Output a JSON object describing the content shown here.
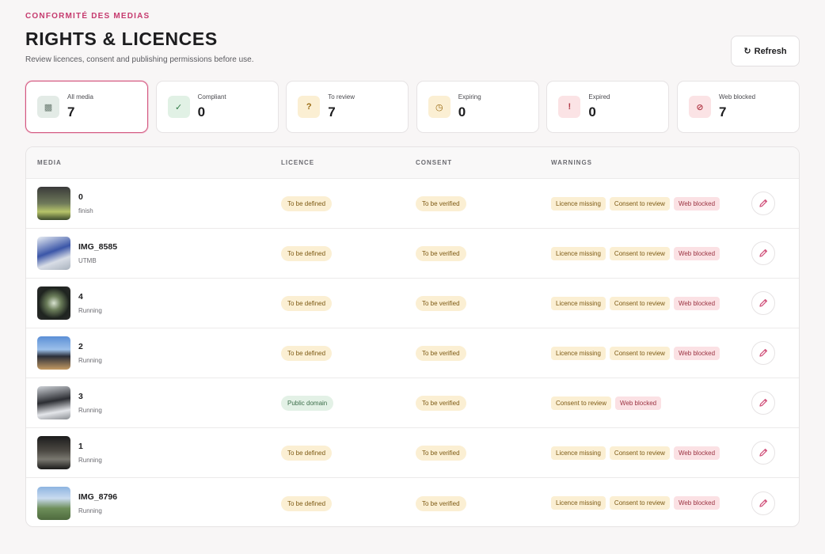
{
  "header": {
    "eyebrow": "CONFORMITÉ DES MEDIAS",
    "title": "RIGHTS & LICENCES",
    "subtitle": "Review licences, consent and publishing permissions before use.",
    "refresh_icon": "↻",
    "refresh": "Refresh"
  },
  "stats": [
    {
      "icon": "▩",
      "label": "All media",
      "value": 7,
      "tone": "slate",
      "active": true
    },
    {
      "icon": "✓",
      "label": "Compliant",
      "value": 0,
      "tone": "green"
    },
    {
      "icon": "?",
      "label": "To review",
      "value": 7,
      "tone": "amber"
    },
    {
      "icon": "◷",
      "label": "Expiring",
      "value": 0,
      "tone": "amber"
    },
    {
      "icon": "!",
      "label": "Expired",
      "value": 0,
      "tone": "red"
    },
    {
      "icon": "⊘",
      "label": "Web blocked",
      "value": 7,
      "tone": "red"
    }
  ],
  "table": {
    "columns": [
      "MEDIA",
      "LICENCE",
      "CONSENT",
      "WARNINGS"
    ],
    "rows": [
      {
        "name": "0",
        "tag": "finish",
        "licence": {
          "text": "To be defined",
          "tone": "amber"
        },
        "consent": {
          "text": "To be verified",
          "tone": "amber"
        },
        "warnings": [
          {
            "text": "Licence missing",
            "tone": "amber"
          },
          {
            "text": "Consent to review",
            "tone": "amber"
          },
          {
            "text": "Web blocked",
            "tone": "red"
          }
        ]
      },
      {
        "name": "IMG_8585",
        "tag": "UTMB",
        "licence": {
          "text": "To be defined",
          "tone": "amber"
        },
        "consent": {
          "text": "To be verified",
          "tone": "amber"
        },
        "warnings": [
          {
            "text": "Licence missing",
            "tone": "amber"
          },
          {
            "text": "Consent to review",
            "tone": "amber"
          },
          {
            "text": "Web blocked",
            "tone": "red"
          }
        ]
      },
      {
        "name": "4",
        "tag": "Running",
        "licence": {
          "text": "To be defined",
          "tone": "amber"
        },
        "consent": {
          "text": "To be verified",
          "tone": "amber"
        },
        "warnings": [
          {
            "text": "Licence missing",
            "tone": "amber"
          },
          {
            "text": "Consent to review",
            "tone": "amber"
          },
          {
            "text": "Web blocked",
            "tone": "red"
          }
        ]
      },
      {
        "name": "2",
        "tag": "Running",
        "licence": {
          "text": "To be defined",
          "tone": "amber"
        },
        "consent": {
          "text": "To be verified",
          "tone": "amber"
        },
        "warnings": [
          {
            "text": "Licence missing",
            "tone": "amber"
          },
          {
            "text": "Consent to review",
            "tone": "amber"
          },
          {
            "text": "Web blocked",
            "tone": "red"
          }
        ]
      },
      {
        "name": "3",
        "tag": "Running",
        "licence": {
          "text": "Public domain",
          "tone": "green"
        },
        "consent": {
          "text": "To be verified",
          "tone": "amber"
        },
        "warnings": [
          {
            "text": "Consent to review",
            "tone": "amber"
          },
          {
            "text": "Web blocked",
            "tone": "red"
          }
        ]
      },
      {
        "name": "1",
        "tag": "Running",
        "licence": {
          "text": "To be defined",
          "tone": "amber"
        },
        "consent": {
          "text": "To be verified",
          "tone": "amber"
        },
        "warnings": [
          {
            "text": "Licence missing",
            "tone": "amber"
          },
          {
            "text": "Consent to review",
            "tone": "amber"
          },
          {
            "text": "Web blocked",
            "tone": "red"
          }
        ]
      },
      {
        "name": "IMG_8796",
        "tag": "Running",
        "licence": {
          "text": "To be defined",
          "tone": "amber"
        },
        "consent": {
          "text": "To be verified",
          "tone": "amber"
        },
        "warnings": [
          {
            "text": "Licence missing",
            "tone": "amber"
          },
          {
            "text": "Consent to review",
            "tone": "amber"
          },
          {
            "text": "Web blocked",
            "tone": "red"
          }
        ]
      }
    ]
  }
}
